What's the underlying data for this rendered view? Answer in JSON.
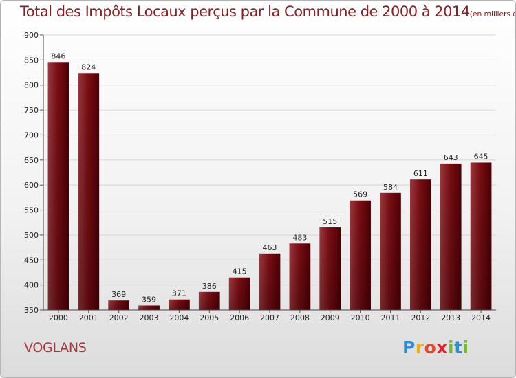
{
  "chart_data": {
    "type": "bar",
    "title": "Total des Impôts Locaux perçus par la Commune de 2000 à 2014",
    "title_unit": "(en milliers d'€)",
    "categories": [
      "2000",
      "2001",
      "2002",
      "2003",
      "2004",
      "2005",
      "2006",
      "2007",
      "2008",
      "2009",
      "2010",
      "2011",
      "2012",
      "2013",
      "2014"
    ],
    "values": [
      846,
      824,
      369,
      359,
      371,
      386,
      415,
      463,
      483,
      515,
      569,
      584,
      611,
      643,
      645
    ],
    "ylim": [
      350,
      900
    ],
    "yticks": [
      350,
      400,
      450,
      500,
      550,
      600,
      650,
      700,
      750,
      800,
      850,
      900
    ],
    "xlabel": "",
    "ylabel": "",
    "grid": true,
    "bar_color": "#7a0f14",
    "bar_color_dark": "#4e0005",
    "bar_color_light": "#9a3a3f"
  },
  "commune": "VOGLANS",
  "logo": {
    "letters": [
      "P",
      "r",
      "o",
      "x",
      "i",
      "t",
      "i"
    ],
    "colors": [
      "#2a8fd6",
      "#e8b11c",
      "#e24a2a",
      "#e2252c",
      "#7ab730",
      "#2a8fd6",
      "#7ab730"
    ]
  }
}
